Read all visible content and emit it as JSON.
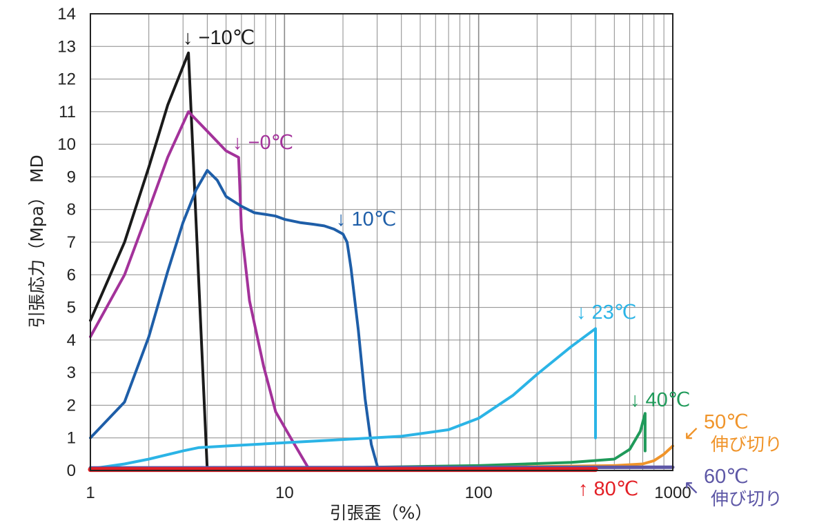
{
  "chart_data": {
    "type": "line",
    "xscale": "log",
    "xlim": [
      1,
      1000
    ],
    "ylim": [
      0,
      14
    ],
    "grid": true,
    "xlabel": "引張歪（%）",
    "ylabel": "引張応力（Mpa）  MD",
    "x_ticks": [
      "1",
      "10",
      "100",
      "1000"
    ],
    "y_ticks": [
      "0",
      "1",
      "2",
      "3",
      "4",
      "5",
      "6",
      "7",
      "8",
      "9",
      "10",
      "11",
      "12",
      "13",
      "14"
    ],
    "series": [
      {
        "name": "−10℃",
        "color": "#1a1a1a",
        "points": [
          [
            1,
            4.6
          ],
          [
            1.5,
            7.0
          ],
          [
            2.0,
            9.3
          ],
          [
            2.5,
            11.2
          ],
          [
            3.2,
            12.8
          ],
          [
            4.0,
            0
          ]
        ]
      },
      {
        "name": "−0℃",
        "color": "#a3329a",
        "points": [
          [
            1,
            4.1
          ],
          [
            1.5,
            6.0
          ],
          [
            2.0,
            8.0
          ],
          [
            2.5,
            9.6
          ],
          [
            3.2,
            11.0
          ],
          [
            4.0,
            10.4
          ],
          [
            5.0,
            9.8
          ],
          [
            5.8,
            9.6
          ],
          [
            6.0,
            7.4
          ],
          [
            6.6,
            5.2
          ],
          [
            7.8,
            3.2
          ],
          [
            9.0,
            1.8
          ],
          [
            11,
            0.9
          ],
          [
            13.5,
            0
          ]
        ]
      },
      {
        "name": "10℃",
        "color": "#1e5ea8",
        "points": [
          [
            1,
            1.0
          ],
          [
            1.5,
            2.1
          ],
          [
            2.0,
            4.1
          ],
          [
            2.5,
            6.1
          ],
          [
            3.0,
            7.6
          ],
          [
            3.5,
            8.6
          ],
          [
            4.0,
            9.2
          ],
          [
            4.5,
            8.9
          ],
          [
            5.0,
            8.4
          ],
          [
            6.0,
            8.1
          ],
          [
            7.0,
            7.9
          ],
          [
            8.0,
            7.85
          ],
          [
            9.0,
            7.8
          ],
          [
            10,
            7.7
          ],
          [
            12,
            7.6
          ],
          [
            14,
            7.55
          ],
          [
            16,
            7.5
          ],
          [
            18,
            7.4
          ],
          [
            20,
            7.25
          ],
          [
            21,
            7.0
          ],
          [
            22,
            6.2
          ],
          [
            24,
            4.3
          ],
          [
            26,
            2.2
          ],
          [
            28,
            0.8
          ],
          [
            30,
            0.15
          ]
        ]
      },
      {
        "name": "23℃",
        "color": "#2bb4e6",
        "points": [
          [
            1,
            0.05
          ],
          [
            1.5,
            0.2
          ],
          [
            2,
            0.35
          ],
          [
            3,
            0.6
          ],
          [
            3.6,
            0.7
          ],
          [
            5,
            0.75
          ],
          [
            10,
            0.85
          ],
          [
            20,
            0.95
          ],
          [
            40,
            1.05
          ],
          [
            70,
            1.25
          ],
          [
            100,
            1.6
          ],
          [
            150,
            2.3
          ],
          [
            200,
            2.95
          ],
          [
            300,
            3.8
          ],
          [
            400,
            4.35
          ],
          [
            400,
            1.0
          ]
        ]
      },
      {
        "name": "40℃",
        "color": "#1f9a5a",
        "points": [
          [
            1,
            0.02
          ],
          [
            10,
            0.06
          ],
          [
            100,
            0.15
          ],
          [
            300,
            0.25
          ],
          [
            500,
            0.35
          ],
          [
            600,
            0.65
          ],
          [
            680,
            1.2
          ],
          [
            720,
            1.75
          ],
          [
            720,
            0.6
          ]
        ]
      },
      {
        "name": "50℃",
        "color": "#f0942a",
        "points": [
          [
            1,
            0.03
          ],
          [
            100,
            0.1
          ],
          [
            500,
            0.15
          ],
          [
            700,
            0.2
          ],
          [
            800,
            0.3
          ],
          [
            900,
            0.5
          ],
          [
            1000,
            0.75
          ]
        ]
      },
      {
        "name": "60℃",
        "color": "#5d57a6",
        "points": [
          [
            1,
            0.08
          ],
          [
            1000,
            0.1
          ]
        ]
      },
      {
        "name": "80℃",
        "color": "#e32026",
        "points": [
          [
            1,
            0.03
          ],
          [
            400,
            0.03
          ]
        ]
      }
    ],
    "annotations": [
      {
        "text": "↓ −10℃",
        "color": "#1a1a1a"
      },
      {
        "text": "↓ −0℃",
        "color": "#a3329a"
      },
      {
        "text": "↓ 10℃",
        "color": "#1e5ea8"
      },
      {
        "text": "↓ 23℃",
        "color": "#2bb4e6"
      },
      {
        "text": "↓ 40℃",
        "color": "#1f9a5a"
      },
      {
        "text": "50℃",
        "sub": "伸び切り",
        "arrow": "↙",
        "color": "#f0942a"
      },
      {
        "text": "60℃",
        "sub": "伸び切り",
        "arrow": "↖",
        "color": "#5d57a6"
      },
      {
        "text": "↑ 80℃",
        "color": "#e32026"
      }
    ]
  }
}
